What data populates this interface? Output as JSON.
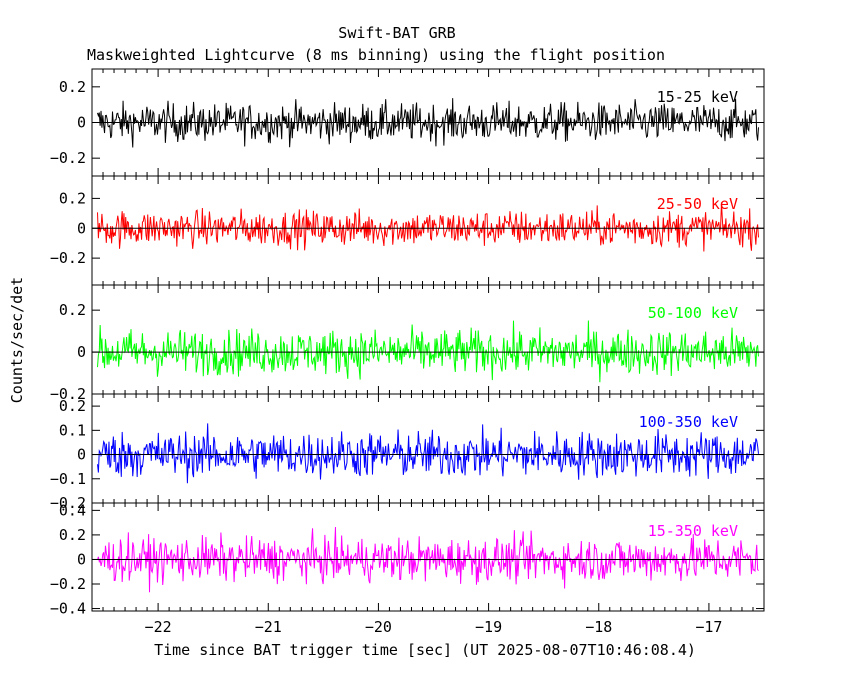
{
  "chart_data": {
    "type": "line",
    "title": "Swift-BAT GRB",
    "subtitle": "Maskweighted Lightcurve (8 ms binning) using the flight position",
    "xlabel": "Time since BAT trigger time [sec] (UT 2025-08-07T10:46:08.4)",
    "ylabel": "Counts/sec/det",
    "xlim": [
      -22.6,
      -16.5
    ],
    "x_ticks": [
      -22,
      -21,
      -20,
      -19,
      -18,
      -17
    ],
    "bin_width_sec": 0.008,
    "data_range": [
      -22.55,
      -16.55
    ],
    "panels": [
      {
        "name": "15-25 keV",
        "color": "#000000",
        "ylim": [
          -0.3,
          0.3
        ],
        "y_ticks": [
          -0.2,
          0,
          0.2
        ],
        "noise_amplitude": 0.09
      },
      {
        "name": "25-50 keV",
        "color": "#ff0000",
        "ylim": [
          -0.38,
          0.35
        ],
        "y_ticks": [
          -0.2,
          0,
          0.2
        ],
        "noise_amplitude": 0.1
      },
      {
        "name": "50-100 keV",
        "color": "#00ff00",
        "ylim": [
          -0.2,
          0.32
        ],
        "y_ticks": [
          -0.2,
          0,
          0.2
        ],
        "noise_amplitude": 0.09
      },
      {
        "name": "100-350 keV",
        "color": "#0000ff",
        "ylim": [
          -0.2,
          0.25
        ],
        "y_ticks": [
          -0.2,
          -0.1,
          0,
          0.1,
          0.2
        ],
        "noise_amplitude": 0.08
      },
      {
        "name": "15-350 keV",
        "color": "#ff00ff",
        "ylim": [
          -0.42,
          0.46
        ],
        "y_ticks": [
          -0.4,
          -0.2,
          0,
          0.2,
          0.4
        ],
        "noise_amplitude": 0.15
      }
    ]
  }
}
